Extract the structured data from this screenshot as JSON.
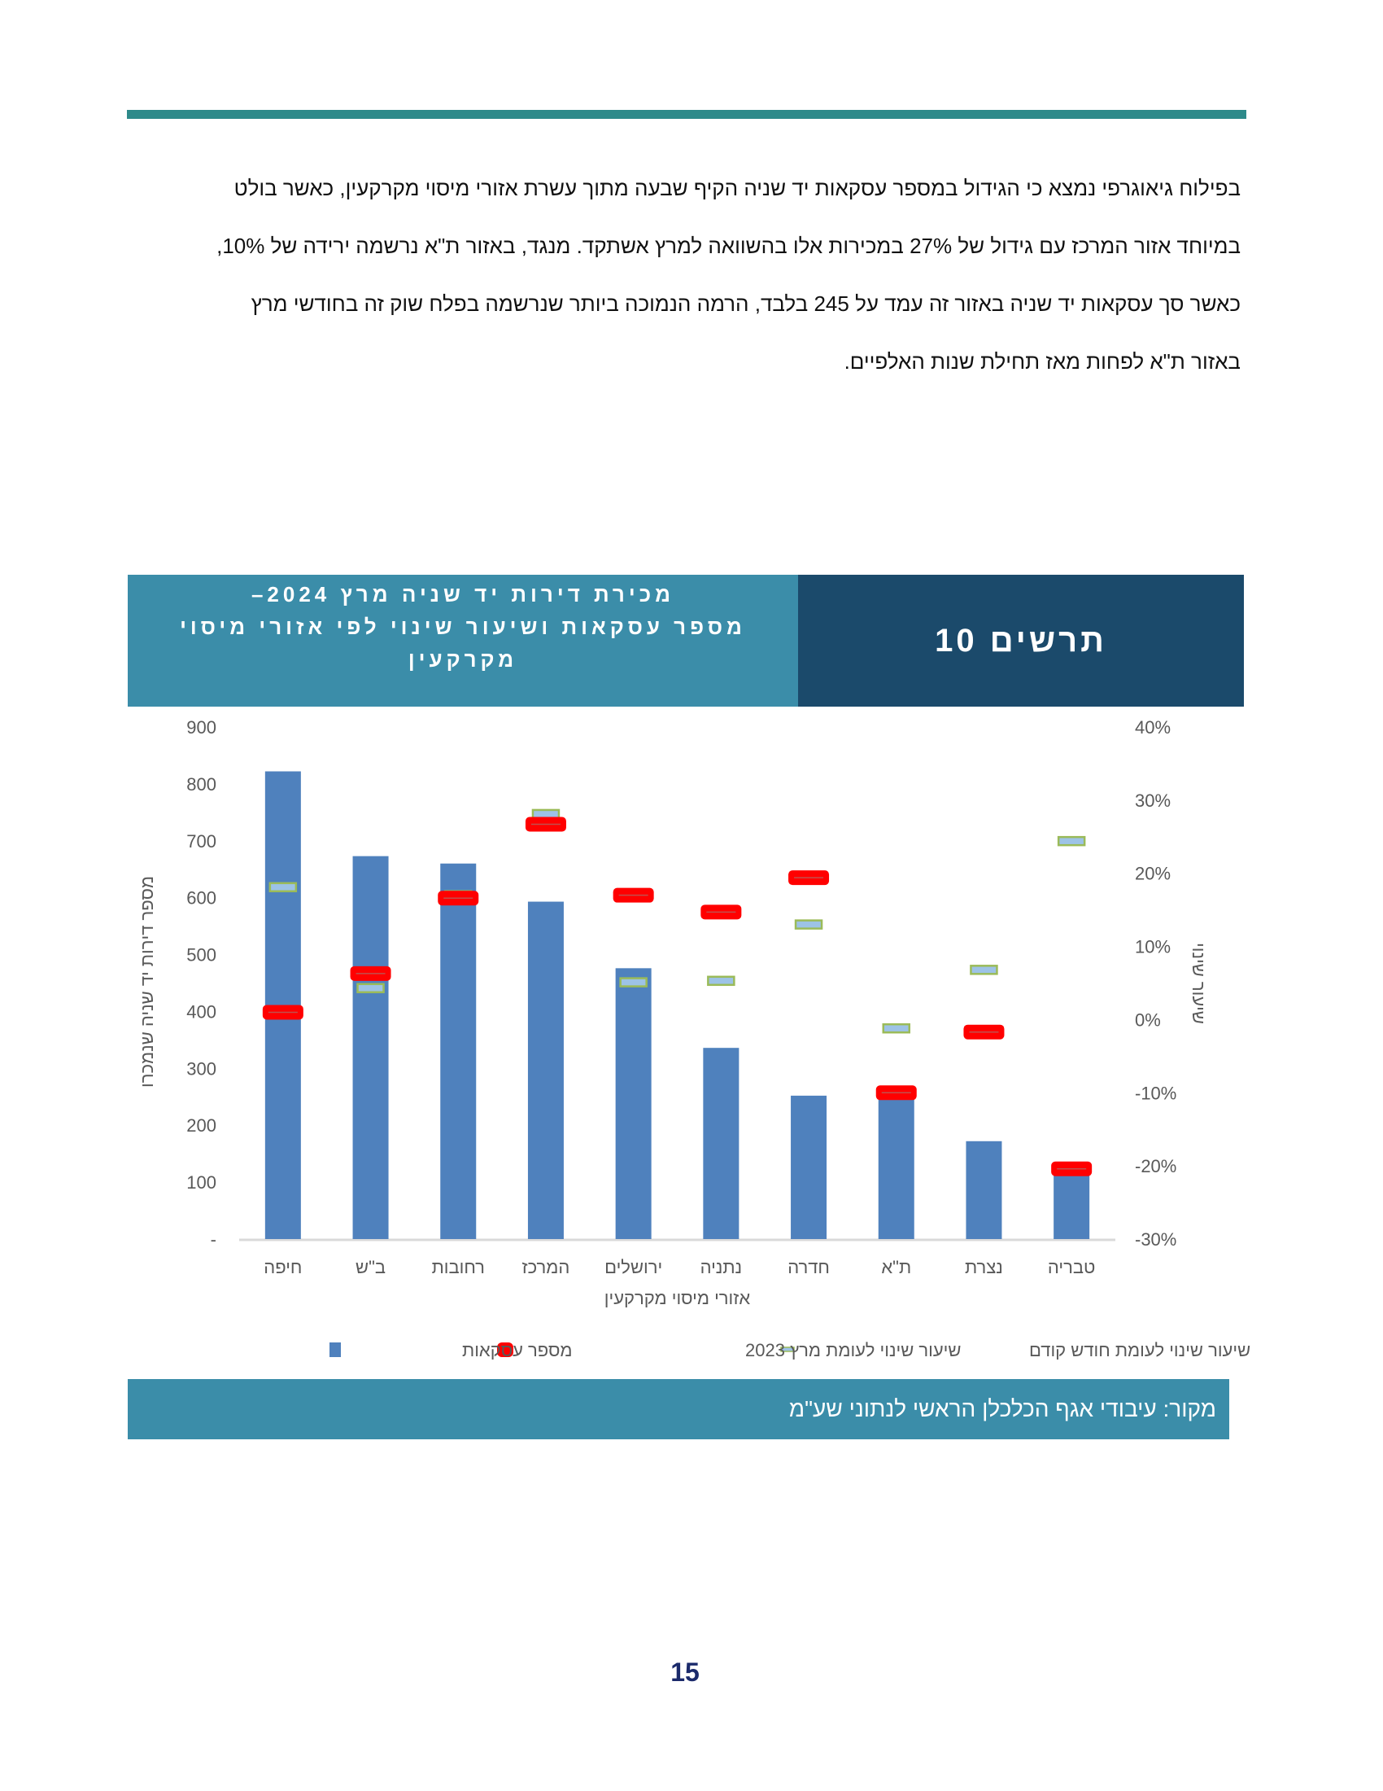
{
  "paragraph": [
    "בפילוח גיאוגרפי נמצא כי הגידול במספר עסקאות יד שניה הקיף שבעה מתוך עשרת אזורי מיסוי מקרקעין, כאשר בולט",
    "במיוחד אזור המרכז עם גידול של 27% במכירות אלו בהשוואה למרץ אשתקד. מנגד, באזור ת\"א נרשמה ירידה של 10%,",
    "כאשר סך עסקאות יד שניה באזור זה עמד על 245 בלבד, הרמה הנמוכה ביותר שנרשמה בפלח שוק זה בחודשי מרץ",
    "באזור ת\"א לפחות מאז תחילת שנות האלפיים."
  ],
  "figure": {
    "label": "תרשים 10",
    "title_line1": "מכירת דירות יד שניה מרץ 2024–",
    "title_line2": "מספר עסקאות ושיעור שינוי לפי אזורי מיסוי מקרקעין"
  },
  "source": "מקור: עיבודי אגף הכלכלן הראשי לנתוני שע\"מ",
  "page_number": "15",
  "chart_data": {
    "type": "bar",
    "categories": [
      "חיפה",
      "ב\"ש",
      "רחובות",
      "המרכז",
      "ירושלים",
      "נתניה",
      "חדרה",
      "ת\"א",
      "נצרת",
      "טבריה"
    ],
    "xlabel": "אזורי מיסוי מקרקעין",
    "ylabel": "מספר דירות יד שניה שנמכרו",
    "y2label": "שיעור שינוי",
    "ylim": [
      0,
      900
    ],
    "y2lim": [
      -30,
      40
    ],
    "yticks": [
      "-",
      "100",
      "200",
      "300",
      "400",
      "500",
      "600",
      "700",
      "800",
      "900"
    ],
    "y2ticks": [
      "-30%",
      "-20%",
      "-10%",
      "0%",
      "10%",
      "20%",
      "30%",
      "40%"
    ],
    "legend_position": "bottom",
    "grid": false,
    "series": [
      {
        "name": "מספר עסקאות",
        "type": "bar",
        "axis": "left",
        "color": "#4f81bd",
        "values": [
          822,
          673,
          660,
          593,
          476,
          336,
          252,
          245,
          172,
          117
        ]
      },
      {
        "name": "שיעור שינוי לעומת מרץ 2023",
        "type": "marker",
        "axis": "right",
        "color": "#ff0000",
        "values": [
          1.0,
          6.3,
          16.6,
          26.7,
          17.0,
          14.7,
          19.4,
          -10.0,
          -1.7,
          -20.4
        ]
      },
      {
        "name": "שיעור שינוי לעומת חודש קודם",
        "type": "marker",
        "axis": "right",
        "color": "#9bbb59",
        "values": [
          18.1,
          4.3,
          17.0,
          28.1,
          5.1,
          5.3,
          13.0,
          -1.2,
          6.8,
          24.4
        ]
      }
    ]
  }
}
